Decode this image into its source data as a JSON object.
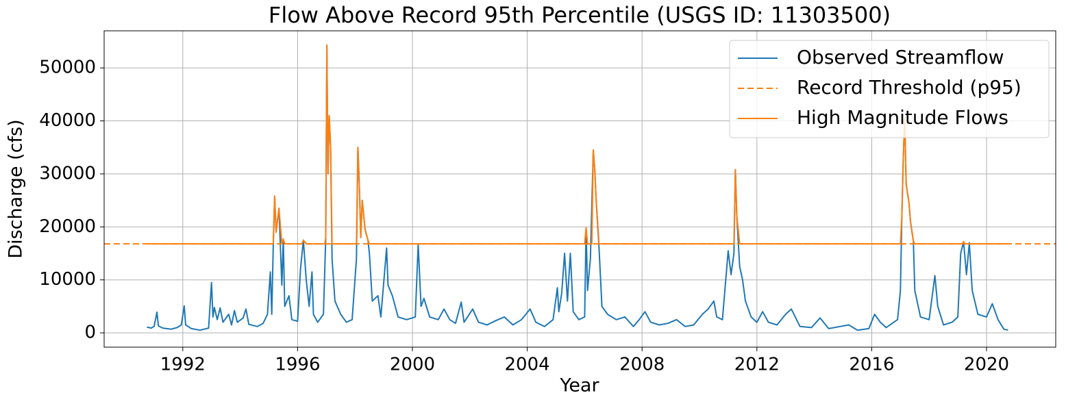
{
  "chart_data": {
    "type": "line",
    "title": "Flow Above Record 95th Percentile (USGS ID: 11303500)",
    "x_label": "Year",
    "y_label": "Discharge (cfs)",
    "xlim": [
      1989.26,
      2022.41
    ],
    "xticks": [
      1992,
      1996,
      2000,
      2004,
      2008,
      2012,
      2016,
      2020
    ],
    "ylim": [
      -2700,
      57000
    ],
    "yticks": [
      0,
      10000,
      20000,
      30000,
      40000,
      50000
    ],
    "grid": true,
    "legend": "upper-right",
    "series": [
      {
        "name": "Observed Streamflow",
        "color": "#1f77b4",
        "style": "solid",
        "x": [
          1990.75,
          1990.9,
          1991.0,
          1991.1,
          1991.15,
          1991.3,
          1991.6,
          1991.8,
          1991.95,
          1992.05,
          1992.1,
          1992.3,
          1992.6,
          1992.9,
          1993.0,
          1993.05,
          1993.1,
          1993.2,
          1993.3,
          1993.4,
          1993.6,
          1993.7,
          1993.8,
          1993.9,
          1994.1,
          1994.2,
          1994.3,
          1994.6,
          1994.8,
          1994.95,
          1995.05,
          1995.1,
          1995.15,
          1995.2,
          1995.25,
          1995.35,
          1995.45,
          1995.5,
          1995.55,
          1995.7,
          1995.8,
          1996.0,
          1996.1,
          1996.2,
          1996.3,
          1996.4,
          1996.5,
          1996.55,
          1996.7,
          1996.9,
          1996.98,
          1997.02,
          1997.06,
          1997.1,
          1997.15,
          1997.2,
          1997.3,
          1997.5,
          1997.7,
          1997.9,
          1998.05,
          1998.1,
          1998.15,
          1998.2,
          1998.25,
          1998.35,
          1998.45,
          1998.5,
          1998.6,
          1998.8,
          1998.9,
          1999.1,
          1999.15,
          1999.3,
          1999.5,
          1999.8,
          2000.1,
          2000.2,
          2000.3,
          2000.4,
          2000.6,
          2000.9,
          2001.1,
          2001.3,
          2001.5,
          2001.7,
          2001.8,
          2002.1,
          2002.3,
          2002.6,
          2002.9,
          2003.2,
          2003.5,
          2003.8,
          2004.1,
          2004.3,
          2004.6,
          2004.9,
          2005.05,
          2005.1,
          2005.2,
          2005.3,
          2005.4,
          2005.5,
          2005.6,
          2005.8,
          2006.0,
          2006.05,
          2006.1,
          2006.2,
          2006.3,
          2006.35,
          2006.4,
          2006.5,
          2006.6,
          2006.8,
          2007.1,
          2007.4,
          2007.7,
          2007.9,
          2008.1,
          2008.3,
          2008.6,
          2008.9,
          2009.2,
          2009.5,
          2009.8,
          2010.1,
          2010.3,
          2010.5,
          2010.6,
          2010.8,
          2011.0,
          2011.1,
          2011.2,
          2011.25,
          2011.3,
          2011.4,
          2011.5,
          2011.6,
          2011.8,
          2012.0,
          2012.2,
          2012.4,
          2012.7,
          2013.0,
          2013.2,
          2013.5,
          2013.9,
          2014.2,
          2014.5,
          2014.9,
          2015.2,
          2015.5,
          2015.9,
          2016.1,
          2016.3,
          2016.5,
          2016.9,
          2017.0,
          2017.05,
          2017.1,
          2017.15,
          2017.2,
          2017.3,
          2017.35,
          2017.45,
          2017.5,
          2017.7,
          2018.0,
          2018.2,
          2018.3,
          2018.5,
          2018.8,
          2019.0,
          2019.1,
          2019.2,
          2019.3,
          2019.4,
          2019.5,
          2019.7,
          2020.0,
          2020.2,
          2020.4,
          2020.6,
          2020.75
        ],
        "values": [
          1100,
          900,
          1200,
          3900,
          1300,
          900,
          700,
          1000,
          1500,
          5100,
          1500,
          800,
          500,
          900,
          9500,
          3000,
          4800,
          2500,
          4700,
          2000,
          3500,
          1500,
          4200,
          2000,
          2800,
          4500,
          1600,
          1200,
          1800,
          3500,
          11500,
          3500,
          16000,
          25800,
          19000,
          23500,
          9000,
          17700,
          5000,
          7000,
          2500,
          2200,
          12000,
          17500,
          10000,
          5000,
          11500,
          3500,
          2000,
          3500,
          18000,
          54300,
          30000,
          41000,
          35000,
          14000,
          6000,
          3500,
          2000,
          2500,
          14000,
          35000,
          28000,
          18000,
          25000,
          19500,
          17500,
          15000,
          6000,
          7000,
          3000,
          16000,
          9000,
          7000,
          3000,
          2500,
          3000,
          16700,
          5000,
          6500,
          3000,
          2500,
          4500,
          2500,
          1800,
          5800,
          2000,
          4500,
          2000,
          1500,
          2300,
          3000,
          1500,
          2500,
          4500,
          2000,
          1200,
          2500,
          8500,
          4000,
          7500,
          15000,
          6000,
          15000,
          4000,
          2500,
          3000,
          19800,
          8000,
          14000,
          34500,
          31000,
          25000,
          16000,
          5000,
          3500,
          2500,
          3000,
          1200,
          2500,
          4000,
          2000,
          1500,
          1800,
          2500,
          1200,
          1500,
          3500,
          4500,
          6000,
          3000,
          2500,
          15500,
          11000,
          15000,
          30800,
          22000,
          12500,
          10000,
          6000,
          3000,
          2000,
          4000,
          2000,
          1500,
          3500,
          4500,
          1200,
          1000,
          2800,
          800,
          1200,
          1500,
          500,
          800,
          3500,
          2000,
          1000,
          2500,
          8000,
          22000,
          33000,
          40500,
          28000,
          24500,
          21000,
          17300,
          8000,
          3000,
          2500,
          10800,
          5000,
          1500,
          2000,
          3000,
          15000,
          17200,
          11000,
          17000,
          8000,
          3500,
          3000,
          5500,
          2500,
          700,
          500
        ]
      },
      {
        "name": "Record Threshold (p95)",
        "color": "#ff7f0e",
        "style": "dashed",
        "span": "axes",
        "values": [
          16800
        ]
      },
      {
        "name": "High Magnitude Flows",
        "color": "#ff7f0e",
        "style": "solid",
        "x": [
          1990.75,
          1995.15,
          1995.2,
          1995.25,
          1995.35,
          1995.45,
          1995.5,
          1995.55,
          1996.15,
          1996.2,
          1996.3,
          1996.95,
          1996.98,
          1997.02,
          1997.06,
          1997.1,
          1997.15,
          1997.2,
          1998.05,
          1998.1,
          1998.15,
          1998.2,
          1998.25,
          1998.35,
          1998.45,
          1998.5,
          2006.0,
          2006.05,
          2006.1,
          2006.25,
          2006.3,
          2006.35,
          2006.4,
          2006.5,
          2011.2,
          2011.25,
          2011.3,
          2011.4,
          2017.0,
          2017.05,
          2017.1,
          2017.15,
          2017.2,
          2017.3,
          2017.35,
          2017.45,
          2017.5,
          2019.15,
          2019.2,
          2019.25,
          2020.75
        ],
        "values": [
          16800,
          16800,
          25800,
          19000,
          23500,
          16800,
          17700,
          16800,
          16800,
          17500,
          16800,
          16800,
          18000,
          54300,
          30000,
          41000,
          35000,
          16800,
          16800,
          35000,
          28000,
          18000,
          25000,
          19500,
          17500,
          16800,
          16800,
          19800,
          16800,
          16800,
          34500,
          31000,
          25000,
          16800,
          16800,
          30800,
          22000,
          16800,
          16800,
          22000,
          33000,
          40500,
          28000,
          24500,
          21000,
          17300,
          16800,
          16800,
          17200,
          16800,
          16800
        ]
      }
    ]
  }
}
